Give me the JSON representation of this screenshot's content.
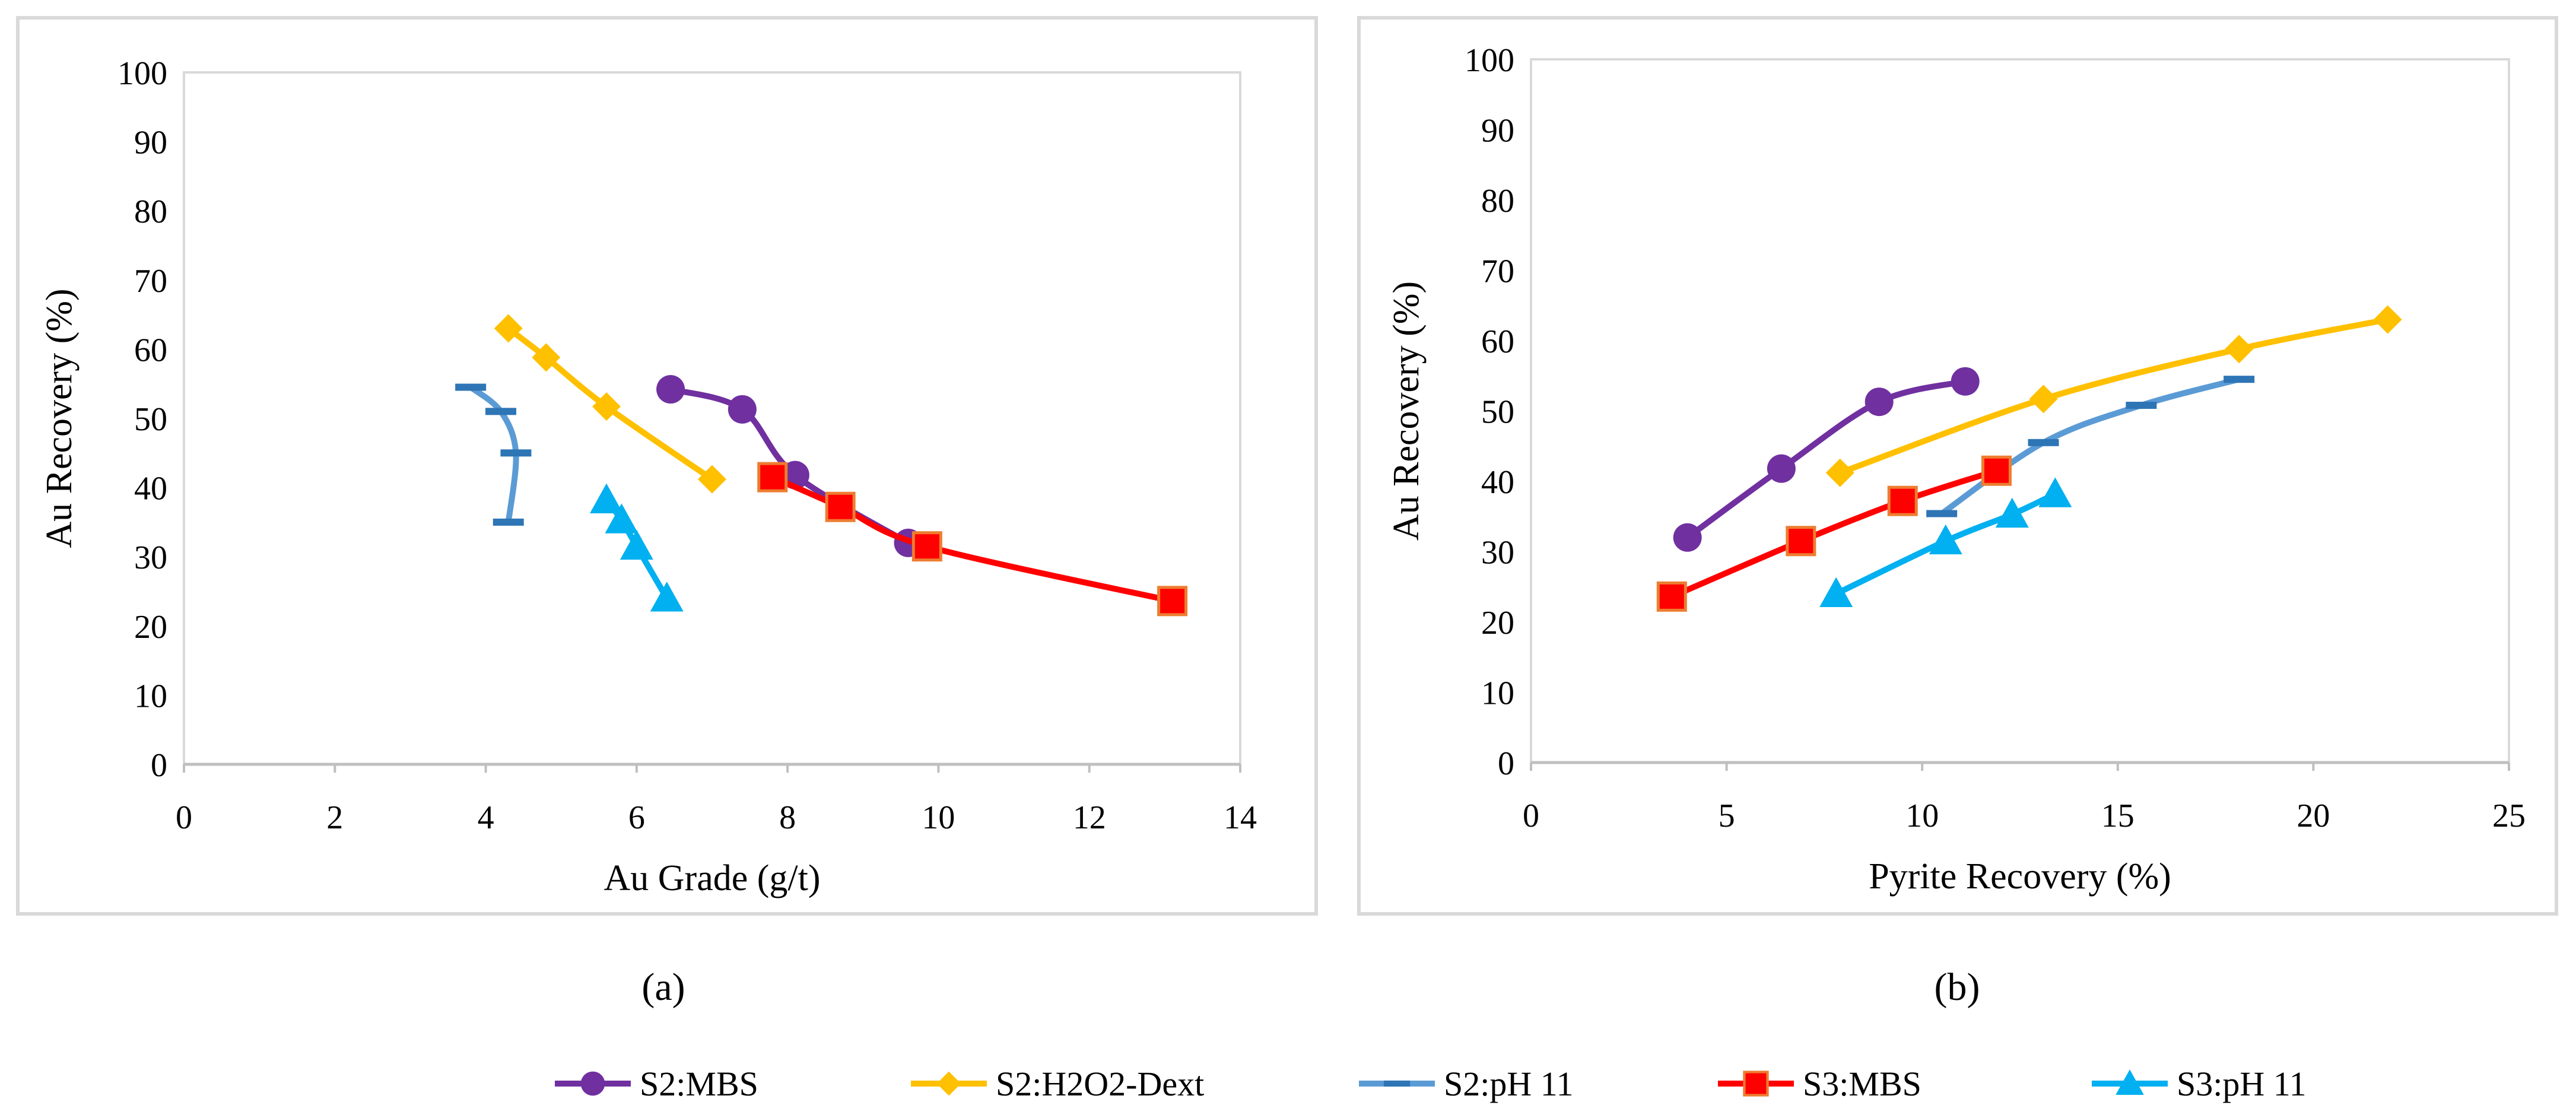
{
  "series_styles": [
    {
      "name": "S2:MBS",
      "color": "#7030A0",
      "marker": "circle"
    },
    {
      "name": "S2:H2O2-Dext",
      "color": "#FFC000",
      "marker": "diamond"
    },
    {
      "name": "S2:pH 11",
      "color": "#2E75B6",
      "line_color": "#5B9BD5",
      "marker": "dash"
    },
    {
      "name": "S3:MBS",
      "color": "#FF0000",
      "marker_stroke": "#ED7D31",
      "marker": "square"
    },
    {
      "name": "S3:pH 11",
      "color": "#00B0F0",
      "marker": "triangle"
    }
  ],
  "chart_data": [
    {
      "type": "line",
      "panel_label": "(a)",
      "xlabel": "Au Grade (g/t)",
      "ylabel": "Au Recovery (%)",
      "xlim": [
        0,
        14
      ],
      "ylim": [
        0,
        100
      ],
      "xticks": [
        "0",
        "2",
        "4",
        "6",
        "8",
        "10",
        "12",
        "14"
      ],
      "yticks": [
        "0",
        "10",
        "20",
        "30",
        "40",
        "50",
        "60",
        "70",
        "80",
        "90",
        "100"
      ],
      "series": [
        {
          "name": "S2:MBS",
          "x": [
            6.45,
            7.4,
            8.1,
            9.6
          ],
          "y": [
            54.2,
            51.3,
            41.8,
            32.0
          ]
        },
        {
          "name": "S2:H2O2-Dext",
          "x": [
            4.3,
            4.8,
            5.6,
            7.0
          ],
          "y": [
            63.0,
            58.8,
            51.7,
            41.2
          ]
        },
        {
          "name": "S2:pH 11",
          "x": [
            3.8,
            4.2,
            4.4,
            4.3
          ],
          "y": [
            54.5,
            51.0,
            45.0,
            35.0
          ]
        },
        {
          "name": "S3:MBS",
          "x": [
            7.8,
            8.7,
            9.85,
            13.1
          ],
          "y": [
            41.5,
            37.2,
            31.5,
            23.6
          ]
        },
        {
          "name": "S3:pH 11",
          "x": [
            5.6,
            5.8,
            6.0,
            6.4
          ],
          "y": [
            38.2,
            35.3,
            31.5,
            24.0
          ]
        }
      ]
    },
    {
      "type": "line",
      "panel_label": "(b)",
      "xlabel": "Pyrite Recovery (%)",
      "ylabel": "Au Recovery (%)",
      "xlim": [
        0,
        25
      ],
      "ylim": [
        0,
        100
      ],
      "xticks": [
        "0",
        "5",
        "10",
        "15",
        "20",
        "25"
      ],
      "yticks": [
        "0",
        "10",
        "20",
        "30",
        "40",
        "50",
        "60",
        "70",
        "80",
        "90",
        "100"
      ],
      "series": [
        {
          "name": "S2:MBS",
          "x": [
            4.0,
            6.4,
            8.9,
            11.1
          ],
          "y": [
            32.0,
            41.8,
            51.3,
            54.2
          ]
        },
        {
          "name": "S2:H2O2-Dext",
          "x": [
            7.9,
            13.1,
            18.1,
            21.9
          ],
          "y": [
            41.2,
            51.7,
            58.8,
            63.0
          ]
        },
        {
          "name": "S2:pH 11",
          "x": [
            10.5,
            13.1,
            15.6,
            18.1
          ],
          "y": [
            35.4,
            45.5,
            50.8,
            54.5
          ]
        },
        {
          "name": "S3:MBS",
          "x": [
            3.6,
            6.9,
            9.5,
            11.9
          ],
          "y": [
            23.6,
            31.5,
            37.2,
            41.5
          ]
        },
        {
          "name": "S3:pH 11",
          "x": [
            7.8,
            10.6,
            12.3,
            13.4
          ],
          "y": [
            24.0,
            31.5,
            35.3,
            38.2
          ]
        }
      ]
    }
  ]
}
